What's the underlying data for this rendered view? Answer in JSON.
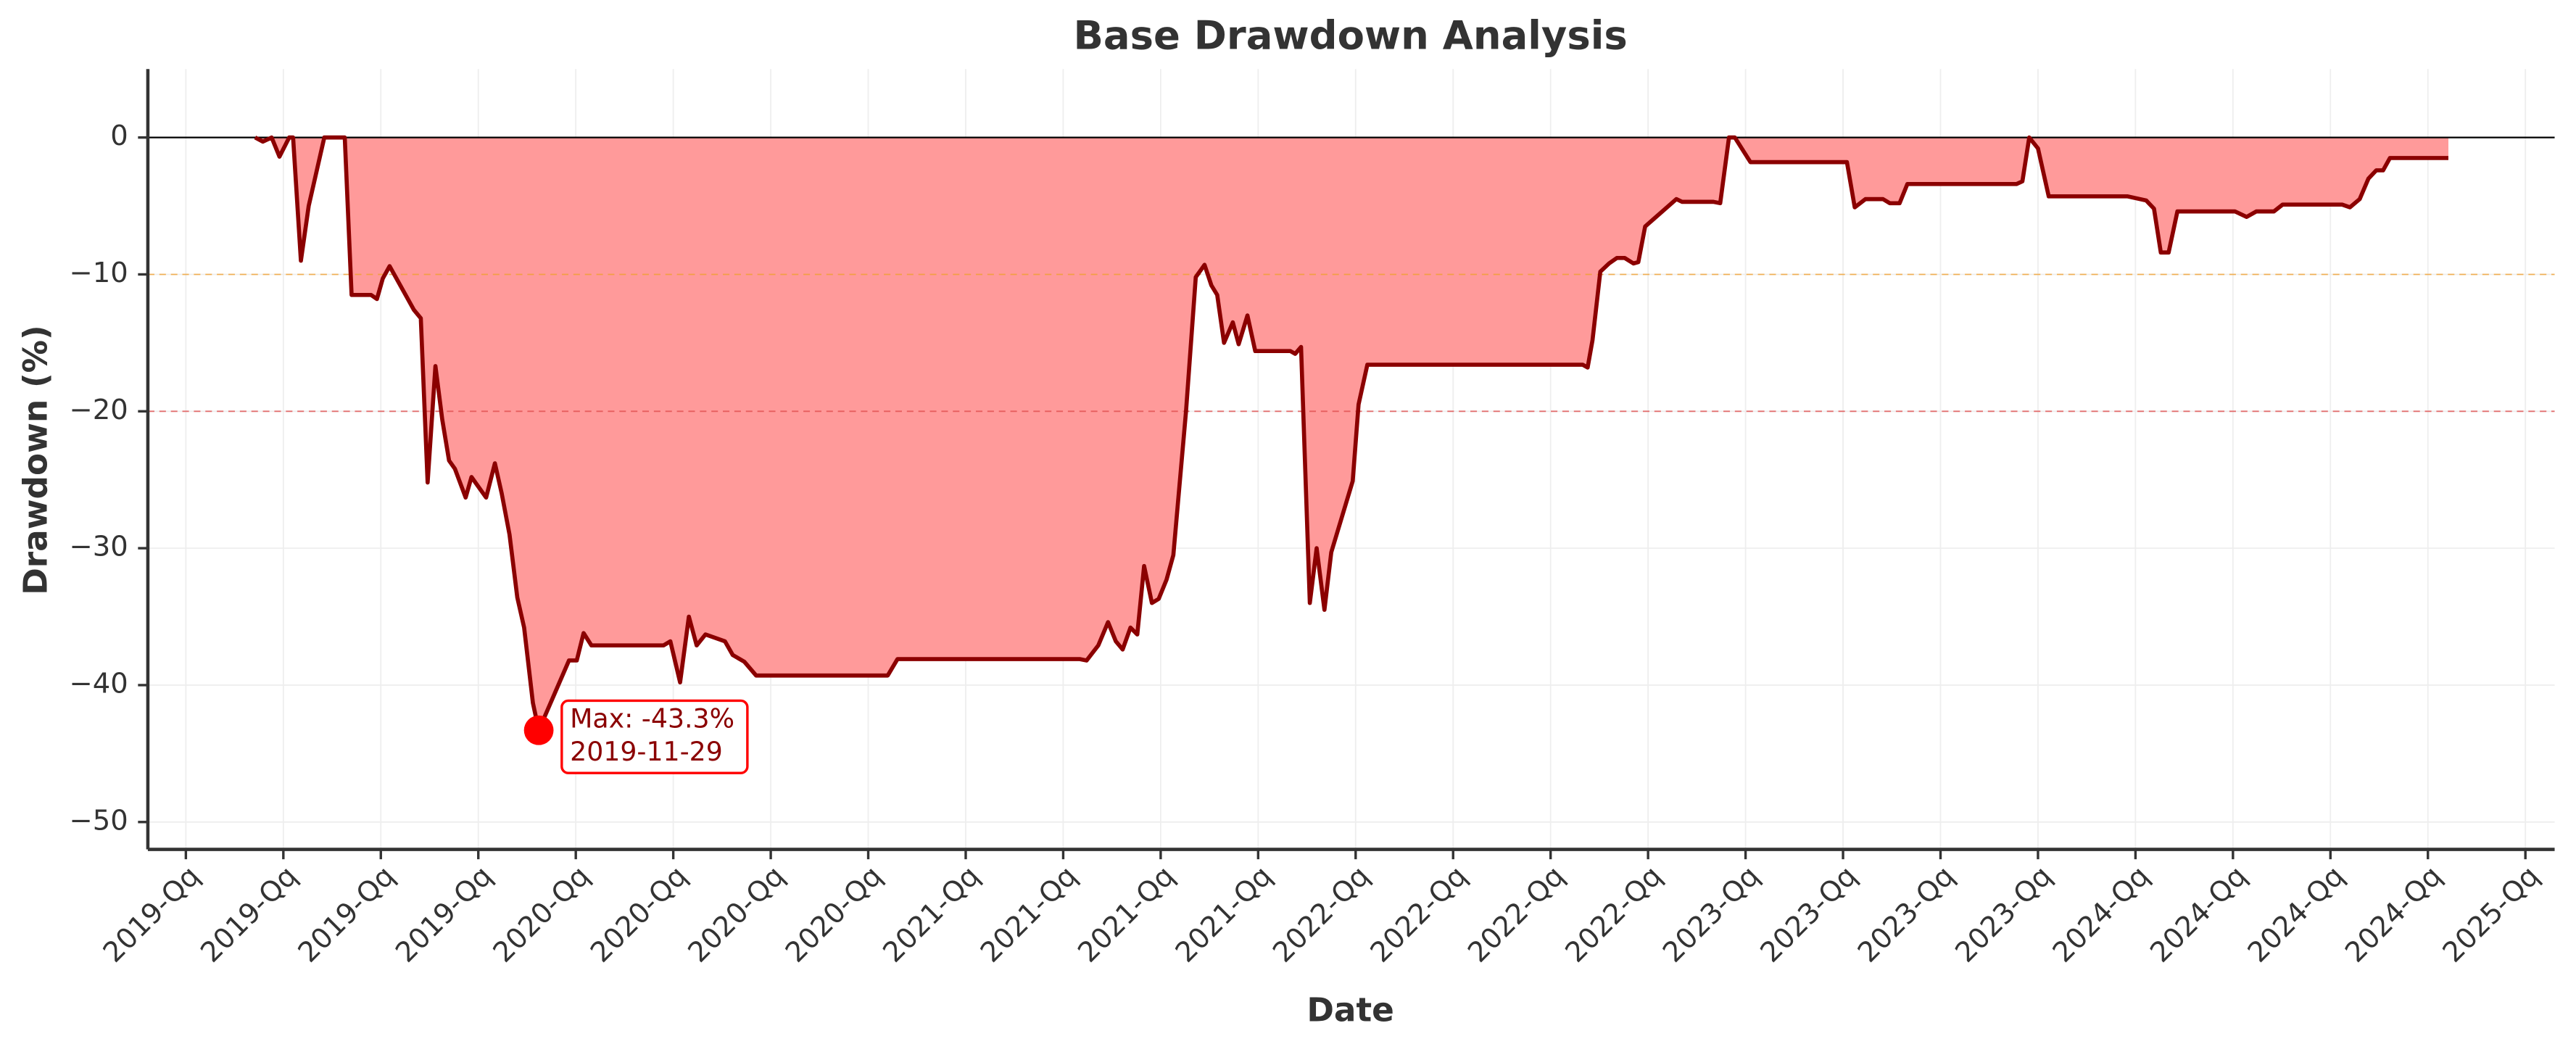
{
  "chart_data": {
    "type": "area_line",
    "title": "Base Drawdown Analysis",
    "x_label": "Date",
    "y_label": "Drawdown (%)",
    "x": [
      0.71,
      0.79,
      0.88,
      0.96,
      1.06,
      1.1,
      1.18,
      1.26,
      1.42,
      1.63,
      1.7,
      1.9,
      1.96,
      2.02,
      2.09,
      2.34,
      2.41,
      2.48,
      2.56,
      2.63,
      2.7,
      2.76,
      2.87,
      2.93,
      3.08,
      3.17,
      3.24,
      3.32,
      3.4,
      3.47,
      3.56,
      3.62,
      3.93,
      4.01,
      4.08,
      4.16,
      4.9,
      4.97,
      5.07,
      5.16,
      5.24,
      5.33,
      5.53,
      5.61,
      5.73,
      5.85,
      7.2,
      7.3,
      9.17,
      9.24,
      9.36,
      9.46,
      9.54,
      9.61,
      9.69,
      9.76,
      9.83,
      9.91,
      9.98,
      10.06,
      10.13,
      10.26,
      10.36,
      10.45,
      10.52,
      10.58,
      10.65,
      10.74,
      10.8,
      10.89,
      10.97,
      11.33,
      11.38,
      11.44,
      11.53,
      11.6,
      11.68,
      11.75,
      11.97,
      12.03,
      12.12,
      14.33,
      14.38,
      14.43,
      14.51,
      14.6,
      14.68,
      14.76,
      14.85,
      14.9,
      14.97,
      15.05,
      15.29,
      15.35,
      15.67,
      15.74,
      15.83,
      15.89,
      16.05,
      17.04,
      17.12,
      17.23,
      17.41,
      17.48,
      17.58,
      17.66,
      18.78,
      18.84,
      18.91,
      19.0,
      19.11,
      19.92,
      20.11,
      20.19,
      20.26,
      20.34,
      20.43,
      21.02,
      21.14,
      21.24,
      21.42,
      21.51,
      22.12,
      22.2,
      22.3,
      22.39,
      22.47,
      22.54,
      22.61,
      23.21
    ],
    "series": [
      {
        "name": "Drawdown",
        "color": "#8b0000",
        "fill": "#ff9a9a",
        "values": [
          0,
          -0.3,
          0,
          -1.4,
          0,
          0,
          -9,
          -5,
          0,
          0,
          -11.5,
          -11.5,
          -11.8,
          -10.3,
          -9.4,
          -12.6,
          -13.2,
          -25.2,
          -16.7,
          -20.6,
          -23.6,
          -24.2,
          -26.3,
          -24.8,
          -26.3,
          -23.8,
          -26,
          -29,
          -33.6,
          -35.8,
          -41.3,
          -43.3,
          -38.2,
          -38.2,
          -36.2,
          -37.1,
          -37.1,
          -36.8,
          -39.8,
          -35,
          -37.1,
          -36.3,
          -36.8,
          -37.8,
          -38.3,
          -39.3,
          -39.3,
          -38.1,
          -38.1,
          -38.2,
          -37.1,
          -35.4,
          -36.8,
          -37.4,
          -35.8,
          -36.3,
          -31.3,
          -34,
          -33.7,
          -32.3,
          -30.5,
          -20,
          -10.2,
          -9.3,
          -10.8,
          -11.5,
          -15,
          -13.5,
          -15.1,
          -13,
          -15.6,
          -15.6,
          -15.8,
          -15.3,
          -34,
          -30,
          -34.5,
          -30.3,
          -25.1,
          -19.5,
          -16.6,
          -16.6,
          -16.8,
          -14.8,
          -9.8,
          -9.2,
          -8.8,
          -8.8,
          -9.2,
          -9.1,
          -6.5,
          -6,
          -4.5,
          -4.7,
          -4.7,
          -4.8,
          0,
          0,
          -1.8,
          -1.8,
          -5.1,
          -4.5,
          -4.5,
          -4.8,
          -4.8,
          -3.4,
          -3.4,
          -3.2,
          0,
          -0.8,
          -4.3,
          -4.3,
          -4.6,
          -5.2,
          -8.4,
          -8.4,
          -5.4,
          -5.4,
          -5.8,
          -5.4,
          -5.4,
          -4.9,
          -4.9,
          -5.1,
          -4.5,
          -3,
          -2.4,
          -2.4,
          -1.5,
          -1.5
        ]
      }
    ],
    "xlim": [
      -0.39,
      24.3
    ],
    "ylim": [
      -52,
      5
    ],
    "xticks": [
      {
        "value": 0,
        "label": "2019-Qq"
      },
      {
        "value": 1,
        "label": "2019-Qq"
      },
      {
        "value": 2,
        "label": "2019-Qq"
      },
      {
        "value": 3,
        "label": "2019-Qq"
      },
      {
        "value": 4,
        "label": "2020-Qq"
      },
      {
        "value": 5,
        "label": "2020-Qq"
      },
      {
        "value": 6,
        "label": "2020-Qq"
      },
      {
        "value": 7,
        "label": "2020-Qq"
      },
      {
        "value": 8,
        "label": "2021-Qq"
      },
      {
        "value": 9,
        "label": "2021-Qq"
      },
      {
        "value": 10,
        "label": "2021-Qq"
      },
      {
        "value": 11,
        "label": "2021-Qq"
      },
      {
        "value": 12,
        "label": "2022-Qq"
      },
      {
        "value": 13,
        "label": "2022-Qq"
      },
      {
        "value": 14,
        "label": "2022-Qq"
      },
      {
        "value": 15,
        "label": "2022-Qq"
      },
      {
        "value": 16,
        "label": "2023-Qq"
      },
      {
        "value": 17,
        "label": "2023-Qq"
      },
      {
        "value": 18,
        "label": "2023-Qq"
      },
      {
        "value": 19,
        "label": "2023-Qq"
      },
      {
        "value": 20,
        "label": "2024-Qq"
      },
      {
        "value": 21,
        "label": "2024-Qq"
      },
      {
        "value": 22,
        "label": "2024-Qq"
      },
      {
        "value": 23,
        "label": "2024-Qq"
      },
      {
        "value": 24,
        "label": "2025-Qq"
      }
    ],
    "yticks": [
      {
        "value": -50,
        "label": "−50"
      },
      {
        "value": -40,
        "label": "−40"
      },
      {
        "value": -30,
        "label": "−30"
      },
      {
        "value": -20,
        "label": "−20"
      },
      {
        "value": -10,
        "label": "−10"
      },
      0
    ],
    "grid": true,
    "hlines": [
      {
        "value": 0,
        "color": "#000000",
        "dashed": false
      },
      {
        "value": -10,
        "color": "#f0a030",
        "dashed": true
      },
      {
        "value": -20,
        "color": "#e05050",
        "dashed": true
      }
    ],
    "annotation": {
      "x": 3.62,
      "y": -43.3,
      "color": "#ff0000",
      "lines": [
        "Max: -43.3%",
        "2019-11-29"
      ]
    }
  }
}
